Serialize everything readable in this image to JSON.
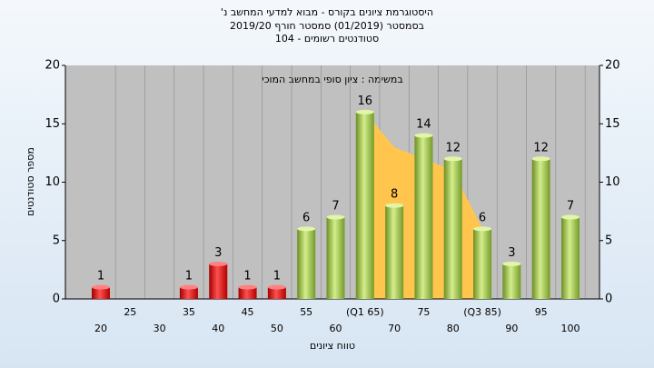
{
  "chart_data": {
    "type": "bar",
    "title": "היסטוגרמת ציונים בקורס - מבוא למדעי המחשב נ'",
    "subtitle": "בסמסטר (01/2019) סמסטר חורף 2019/20",
    "subtitle2": "סטודנטים רשומים - 104",
    "annotation": "במשימה : ציון סופי במחשב המוכי",
    "x_label": "טווח ציונים",
    "y_label": "מספר סטודנטים",
    "categories": [
      "20",
      "25",
      "30",
      "35",
      "40",
      "45",
      "50",
      "55",
      "60",
      "(Q1 65)",
      "70",
      "75",
      "80",
      "(Q3 85)",
      "90",
      "95",
      "100"
    ],
    "values": [
      1,
      null,
      null,
      1,
      3,
      1,
      1,
      6,
      7,
      16,
      8,
      14,
      12,
      6,
      3,
      12,
      7
    ],
    "colors": [
      "red",
      "red",
      "red",
      "red",
      "red",
      "red",
      "red",
      "green",
      "green",
      "green",
      "green",
      "green",
      "green",
      "green",
      "green",
      "green",
      "green"
    ],
    "band": {
      "color": "#ffc54d",
      "values": [
        null,
        null,
        null,
        null,
        null,
        null,
        null,
        null,
        null,
        16,
        13,
        12,
        11,
        6,
        null,
        null,
        null
      ]
    },
    "ylim": [
      0,
      20
    ],
    "yticks": [
      0,
      5,
      10,
      15,
      20
    ],
    "y2lim": [
      0,
      20
    ],
    "y2ticks": [
      0,
      5,
      10,
      15,
      20
    ],
    "grid": false
  }
}
